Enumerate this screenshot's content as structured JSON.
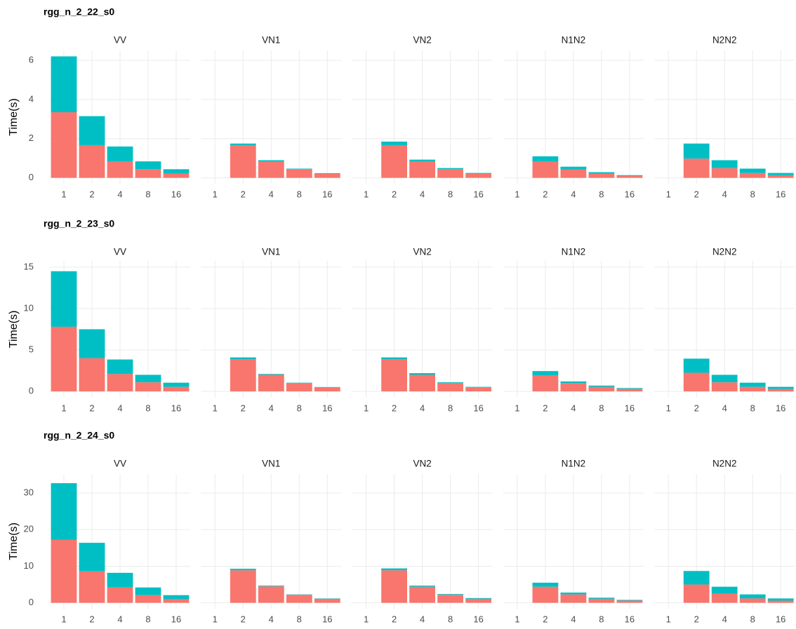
{
  "chart_data": [
    {
      "type": "bar",
      "stacked": true,
      "title": "rgg_n_2_22_s0",
      "ylabel": "Time(s)",
      "ylim": [
        -0.3,
        6.5
      ],
      "yticks": [
        0,
        2,
        4,
        6
      ],
      "grid": true,
      "panels": [
        {
          "title": "VV",
          "categories": [
            "1",
            "2",
            "4",
            "8",
            "16"
          ],
          "series": [
            {
              "color": "#F8766D",
              "values": [
                3.35,
                1.67,
                0.83,
                0.44,
                0.22
              ]
            },
            {
              "color": "#00BFC4",
              "values": [
                2.85,
                1.48,
                0.77,
                0.4,
                0.22
              ]
            }
          ]
        },
        {
          "title": "VN1",
          "categories": [
            "1",
            "2",
            "4",
            "8",
            "16"
          ],
          "series": [
            {
              "color": "#F8766D",
              "values": [
                0,
                1.67,
                0.83,
                0.44,
                0.22
              ]
            },
            {
              "color": "#00BFC4",
              "values": [
                0,
                0.08,
                0.07,
                0.03,
                0.02
              ]
            }
          ]
        },
        {
          "title": "VN2",
          "categories": [
            "1",
            "2",
            "4",
            "8",
            "16"
          ],
          "series": [
            {
              "color": "#F8766D",
              "values": [
                0,
                1.67,
                0.83,
                0.44,
                0.22
              ]
            },
            {
              "color": "#00BFC4",
              "values": [
                0,
                0.18,
                0.1,
                0.06,
                0.03
              ]
            }
          ]
        },
        {
          "title": "N1N2",
          "categories": [
            "1",
            "2",
            "4",
            "8",
            "16"
          ],
          "series": [
            {
              "color": "#F8766D",
              "values": [
                0,
                0.83,
                0.42,
                0.22,
                0.11
              ]
            },
            {
              "color": "#00BFC4",
              "values": [
                0,
                0.27,
                0.15,
                0.07,
                0.03
              ]
            }
          ]
        },
        {
          "title": "N2N2",
          "categories": [
            "1",
            "2",
            "4",
            "8",
            "16"
          ],
          "series": [
            {
              "color": "#F8766D",
              "values": [
                0,
                0.98,
                0.5,
                0.25,
                0.13
              ]
            },
            {
              "color": "#00BFC4",
              "values": [
                0,
                0.77,
                0.4,
                0.22,
                0.12
              ]
            }
          ]
        }
      ]
    },
    {
      "type": "bar",
      "stacked": true,
      "title": "rgg_n_2_23_s0",
      "ylabel": "Time(s)",
      "ylim": [
        -0.75,
        15.75
      ],
      "yticks": [
        0,
        5,
        10,
        15
      ],
      "grid": true,
      "panels": [
        {
          "title": "VV",
          "categories": [
            "1",
            "2",
            "4",
            "8",
            "16"
          ],
          "series": [
            {
              "color": "#F8766D",
              "values": [
                7.8,
                4.0,
                2.1,
                1.1,
                0.55
              ]
            },
            {
              "color": "#00BFC4",
              "values": [
                6.7,
                3.5,
                1.75,
                0.9,
                0.5
              ]
            }
          ]
        },
        {
          "title": "VN1",
          "categories": [
            "1",
            "2",
            "4",
            "8",
            "16"
          ],
          "series": [
            {
              "color": "#F8766D",
              "values": [
                0,
                3.9,
                2.0,
                1.0,
                0.5
              ]
            },
            {
              "color": "#00BFC4",
              "values": [
                0,
                0.2,
                0.1,
                0.05,
                0.03
              ]
            }
          ]
        },
        {
          "title": "VN2",
          "categories": [
            "1",
            "2",
            "4",
            "8",
            "16"
          ],
          "series": [
            {
              "color": "#F8766D",
              "values": [
                0,
                3.9,
                2.0,
                1.0,
                0.5
              ]
            },
            {
              "color": "#00BFC4",
              "values": [
                0,
                0.2,
                0.2,
                0.1,
                0.05
              ]
            }
          ]
        },
        {
          "title": "N1N2",
          "categories": [
            "1",
            "2",
            "4",
            "8",
            "16"
          ],
          "series": [
            {
              "color": "#F8766D",
              "values": [
                0,
                1.9,
                1.0,
                0.55,
                0.3
              ]
            },
            {
              "color": "#00BFC4",
              "values": [
                0,
                0.55,
                0.2,
                0.15,
                0.1
              ]
            }
          ]
        },
        {
          "title": "N2N2",
          "categories": [
            "1",
            "2",
            "4",
            "8",
            "16"
          ],
          "series": [
            {
              "color": "#F8766D",
              "values": [
                0,
                2.25,
                1.1,
                0.55,
                0.3
              ]
            },
            {
              "color": "#00BFC4",
              "values": [
                0,
                1.7,
                0.9,
                0.5,
                0.25
              ]
            }
          ]
        }
      ]
    },
    {
      "type": "bar",
      "stacked": true,
      "title": "rgg_n_2_24_s0",
      "ylabel": "Time(s)",
      "ylim": [
        -1.6,
        35.2
      ],
      "yticks": [
        0,
        10,
        20,
        30
      ],
      "grid": true,
      "panels": [
        {
          "title": "VV",
          "categories": [
            "1",
            "2",
            "4",
            "8",
            "16"
          ],
          "series": [
            {
              "color": "#F8766D",
              "values": [
                17.2,
                8.6,
                4.2,
                2.1,
                1.0
              ]
            },
            {
              "color": "#00BFC4",
              "values": [
                15.5,
                7.8,
                4.0,
                2.1,
                1.1
              ]
            }
          ]
        },
        {
          "title": "VN1",
          "categories": [
            "1",
            "2",
            "4",
            "8",
            "16"
          ],
          "series": [
            {
              "color": "#F8766D",
              "values": [
                0,
                8.9,
                4.5,
                2.2,
                1.1
              ]
            },
            {
              "color": "#00BFC4",
              "values": [
                0,
                0.4,
                0.2,
                0.1,
                0.1
              ]
            }
          ]
        },
        {
          "title": "VN2",
          "categories": [
            "1",
            "2",
            "4",
            "8",
            "16"
          ],
          "series": [
            {
              "color": "#F8766D",
              "values": [
                0,
                8.9,
                4.4,
                2.2,
                1.1
              ]
            },
            {
              "color": "#00BFC4",
              "values": [
                0,
                0.5,
                0.3,
                0.2,
                0.2
              ]
            }
          ]
        },
        {
          "title": "N1N2",
          "categories": [
            "1",
            "2",
            "4",
            "8",
            "16"
          ],
          "series": [
            {
              "color": "#F8766D",
              "values": [
                0,
                4.4,
                2.3,
                1.1,
                0.6
              ]
            },
            {
              "color": "#00BFC4",
              "values": [
                0,
                1.1,
                0.5,
                0.3,
                0.2
              ]
            }
          ]
        },
        {
          "title": "N2N2",
          "categories": [
            "1",
            "2",
            "4",
            "8",
            "16"
          ],
          "series": [
            {
              "color": "#F8766D",
              "values": [
                0,
                5.0,
                2.5,
                1.2,
                0.6
              ]
            },
            {
              "color": "#00BFC4",
              "values": [
                0,
                3.7,
                1.9,
                1.1,
                0.6
              ]
            }
          ]
        }
      ]
    }
  ]
}
